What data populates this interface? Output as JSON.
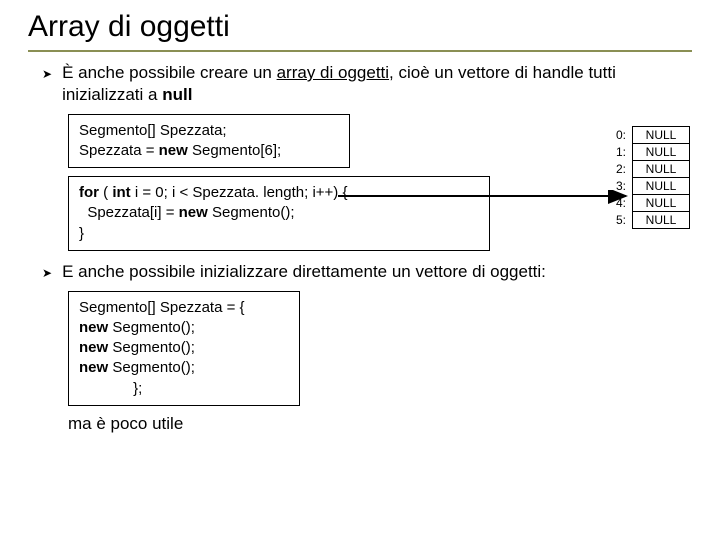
{
  "title": "Array di oggetti",
  "bullet1_a": "È anche possibile creare un ",
  "bullet1_u": "array di oggetti",
  "bullet1_b": ", cioè un vettore di handle tutti inizializzati a ",
  "bullet1_null": "null",
  "code1_l1": "Segmento[] Spezzata;",
  "code1_l2a": "Spezzata = ",
  "code1_l2b": "new",
  "code1_l2c": " Segmento[6];",
  "code2_a": "for",
  "code2_b": " ( ",
  "code2_c": "int",
  "code2_d": " i = 0; i < Spezzata. length; i++) {",
  "code2_l2a": "  Spezzata[i] = ",
  "code2_l2b": "new",
  "code2_l2c": " Segmento();",
  "code2_l3": "}",
  "bullet2": "E anche possibile inizializzare direttamente un vettore di oggetti:",
  "code3_l1": "Segmento[] Spezzata = {",
  "code3_l2a": "new",
  "code3_l2b": " Segmento();",
  "code3_l3a": "new",
  "code3_l3b": " Segmento();",
  "code3_l4a": "new",
  "code3_l4b": " Segmento();",
  "code3_l5": "             };",
  "footer": "ma è poco utile",
  "array": {
    "rows": [
      {
        "idx": "0:",
        "val": "NULL"
      },
      {
        "idx": "1:",
        "val": "NULL"
      },
      {
        "idx": "2:",
        "val": "NULL"
      },
      {
        "idx": "3:",
        "val": "NULL"
      },
      {
        "idx": "4:",
        "val": "NULL"
      },
      {
        "idx": "5:",
        "val": "NULL"
      }
    ],
    "cell_border": "#000000",
    "text_color": "#000000"
  },
  "arrow_color": "#000000"
}
